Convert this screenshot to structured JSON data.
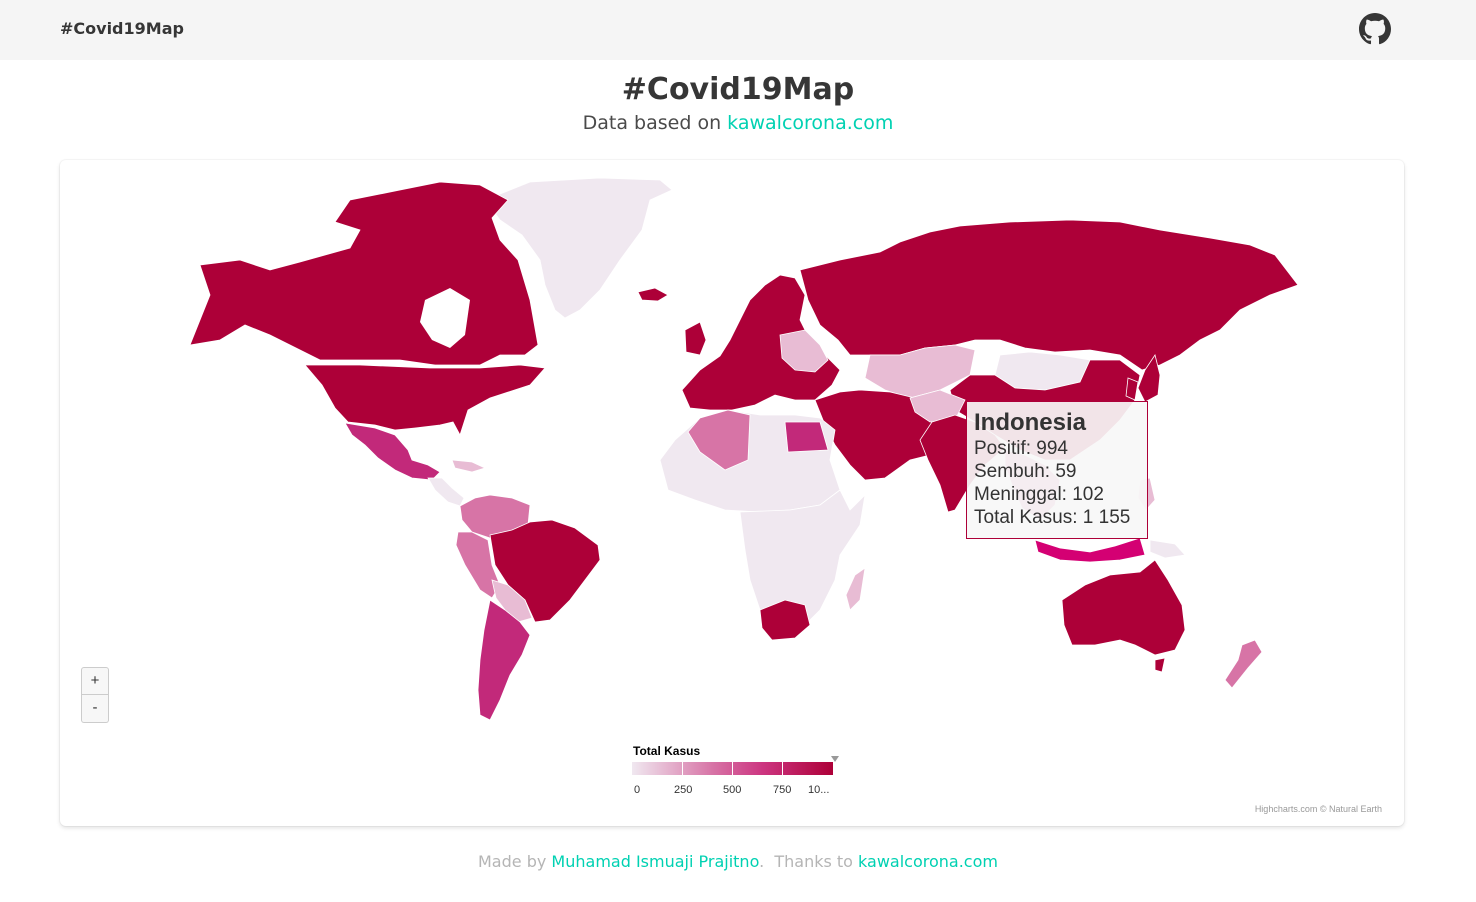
{
  "navbar": {
    "brand": "#Covid19Map",
    "github_icon": "github-icon"
  },
  "header": {
    "title": "#Covid19Map",
    "subtitle_prefix": "Data based on",
    "subtitle_link": "kawalcorona.com"
  },
  "map": {
    "zoom_in_label": "+",
    "zoom_out_label": "-",
    "credits": "Highcharts.com © Natural Earth",
    "tooltip": {
      "country": "Indonesia",
      "positif": "Positif: 994",
      "sembuh": "Sembuh: 59",
      "meninggal": "Meninggal: 102",
      "total": "Total Kasus: 1 155"
    },
    "legend": {
      "title": "Total Kasus",
      "labels": [
        "0",
        "250",
        "500",
        "750",
        "10..."
      ],
      "colors": {
        "min": "#f0e8f0",
        "mid": "#d774a6",
        "max": "#ad0038"
      }
    }
  },
  "footer": {
    "made_by": "Made by",
    "author": "Muhamad Ismuaji Prajitno",
    "thanks": "Thanks to",
    "thanks_link": "kawalcorona.com"
  }
}
